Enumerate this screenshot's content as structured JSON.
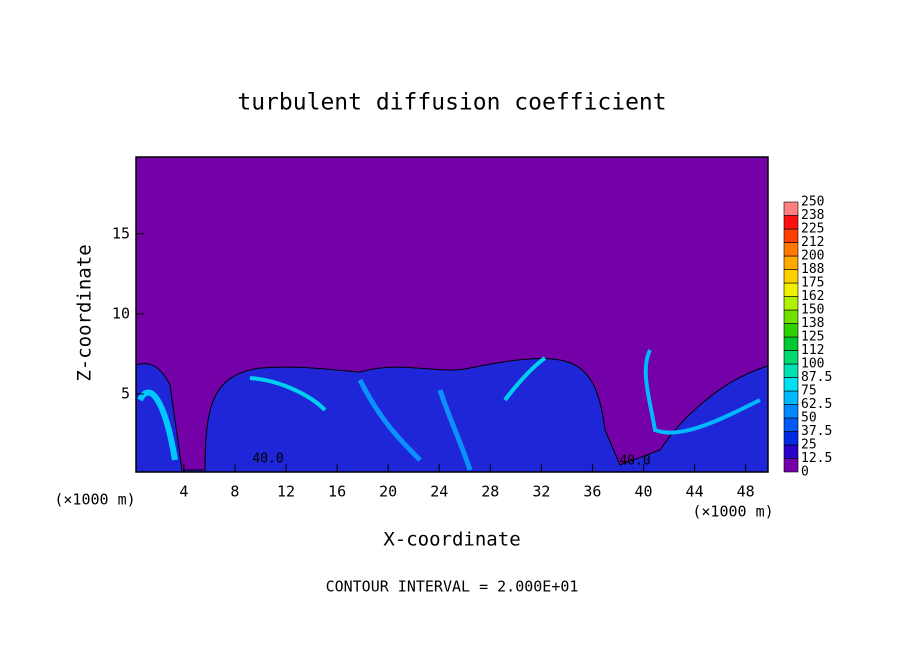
{
  "chart_data": {
    "type": "contour",
    "title": "turbulent diffusion coefficient",
    "xlabel": "X-coordinate",
    "ylabel": "Z-coordinate",
    "x_unit": "(×1000 m)",
    "note": "CONTOUR INTERVAL = 2.000E+01",
    "annotations": [
      "40.0",
      "40.0"
    ],
    "xlim": [
      0.25,
      49.75
    ],
    "ylim": [
      0.125,
      19.8
    ],
    "xticks": [
      4,
      8,
      12,
      16,
      20,
      24,
      28,
      32,
      36,
      40,
      44,
      48
    ],
    "yticks": [
      5,
      10,
      15
    ],
    "background_color": "#7400a8",
    "colorbar": {
      "ticks": [
        0,
        12.5,
        25,
        37.5,
        50,
        62.5,
        75,
        87.5,
        100,
        {
          "value": 112.5,
          "label": "112"
        },
        125,
        {
          "value": 137.5,
          "label": "138"
        },
        150,
        {
          "value": 162.5,
          "label": "162"
        },
        175,
        {
          "value": 187.5,
          "label": "188"
        },
        200,
        {
          "value": 212.5,
          "label": "212"
        },
        225,
        {
          "value": 237.5,
          "label": "238"
        },
        250
      ],
      "colors": [
        "#7400a8",
        "#2a00c8",
        "#0028e0",
        "#0058f8",
        "#0088ff",
        "#00b8ff",
        "#00e0f0",
        "#00e0b0",
        "#00d870",
        "#00c830",
        "#30d000",
        "#70e000",
        "#b0f000",
        "#f0f000",
        "#ffd000",
        "#ffa800",
        "#ff7800",
        "#ff4000",
        "#ff1010",
        "#ff8080"
      ]
    }
  }
}
